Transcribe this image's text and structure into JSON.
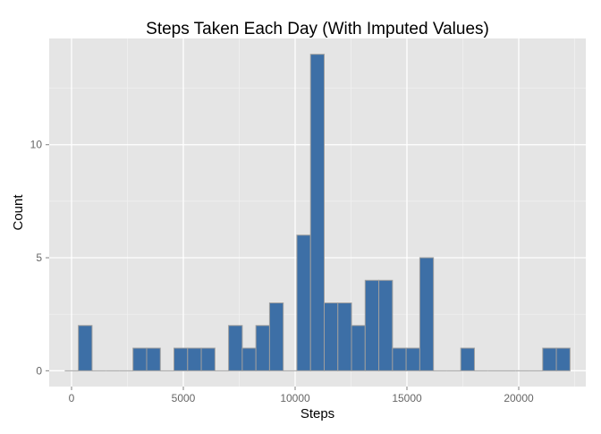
{
  "chart_data": {
    "type": "bar",
    "title": "Steps Taken Each Day (With Imputed Values)",
    "xlabel": "Steps",
    "ylabel": "Count",
    "binwidth": 610.8,
    "bins": [
      {
        "start": -305.4,
        "count": 0
      },
      {
        "start": 305.4,
        "count": 2
      },
      {
        "start": 916.2,
        "count": 0
      },
      {
        "start": 1527,
        "count": 0
      },
      {
        "start": 2137.8,
        "count": 0
      },
      {
        "start": 2748.6,
        "count": 1
      },
      {
        "start": 3359.4,
        "count": 1
      },
      {
        "start": 3970.2,
        "count": 0
      },
      {
        "start": 4581,
        "count": 1
      },
      {
        "start": 5191.8,
        "count": 1
      },
      {
        "start": 5802.6,
        "count": 1
      },
      {
        "start": 6413.4,
        "count": 0
      },
      {
        "start": 7024.2,
        "count": 2
      },
      {
        "start": 7635,
        "count": 1
      },
      {
        "start": 8245.8,
        "count": 2
      },
      {
        "start": 8856.6,
        "count": 3
      },
      {
        "start": 9467.4,
        "count": 0
      },
      {
        "start": 10078.2,
        "count": 6
      },
      {
        "start": 10689,
        "count": 14
      },
      {
        "start": 11299.8,
        "count": 3
      },
      {
        "start": 11910.6,
        "count": 3
      },
      {
        "start": 12521.4,
        "count": 2
      },
      {
        "start": 13132.2,
        "count": 4
      },
      {
        "start": 13743,
        "count": 4
      },
      {
        "start": 14353.8,
        "count": 1
      },
      {
        "start": 14964.6,
        "count": 1
      },
      {
        "start": 15575.4,
        "count": 5
      },
      {
        "start": 16186.2,
        "count": 0
      },
      {
        "start": 16797,
        "count": 0
      },
      {
        "start": 17407.8,
        "count": 1
      },
      {
        "start": 18018.6,
        "count": 0
      },
      {
        "start": 18629.4,
        "count": 0
      },
      {
        "start": 19240.2,
        "count": 0
      },
      {
        "start": 19851,
        "count": 0
      },
      {
        "start": 20461.8,
        "count": 0
      },
      {
        "start": 21072.6,
        "count": 1
      },
      {
        "start": 21683.4,
        "count": 1
      }
    ],
    "xlim": [
      -1000,
      23000
    ],
    "ylim": [
      -0.7,
      14.7
    ],
    "xticks": [
      0,
      5000,
      10000,
      15000,
      20000
    ],
    "yticks": [
      0,
      5,
      10
    ],
    "grid": true,
    "colors": {
      "panel": "#E5E5E5",
      "grid": "#FFFFFF",
      "bar_fill": "#3D6FA6",
      "bar_outline": "#9E9E9E",
      "tick_text": "#666666",
      "label_text": "#000000"
    }
  }
}
